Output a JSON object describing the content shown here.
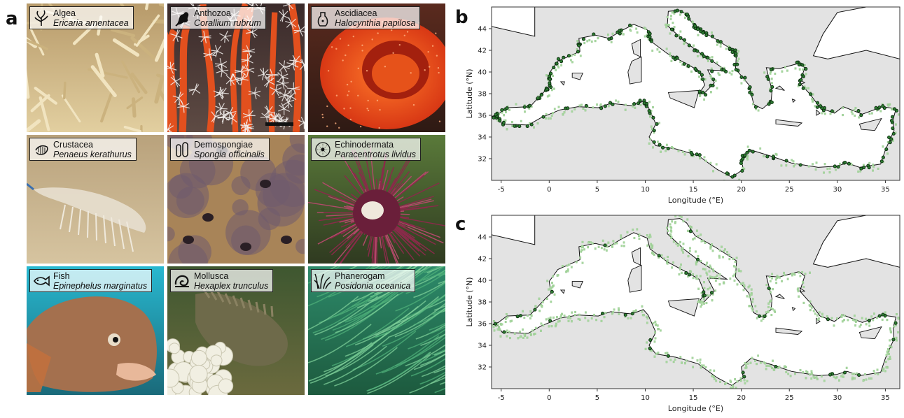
{
  "panels": {
    "a": "a",
    "b": "b",
    "c": "c"
  },
  "species": [
    {
      "group": "Algea",
      "species": "Ericaria amentacea",
      "icon": "alga-icon",
      "bg": "#d9c39a"
    },
    {
      "group": "Anthozoa",
      "species": "Corallium rubrum",
      "icon": "coral-icon",
      "bg": "#6b3b2a"
    },
    {
      "group": "Ascidiacea",
      "species": "Halocynthia papilosa",
      "icon": "ascidian-icon",
      "bg": "#b02810"
    },
    {
      "group": "Crustacea",
      "species": "Penaeus kerathurus",
      "icon": "shrimp-icon",
      "bg": "#c3ad85"
    },
    {
      "group": "Demospongiae",
      "species": "Spongia officinalis",
      "icon": "sponge-icon",
      "bg": "#8a6d52"
    },
    {
      "group": "Echinodermata",
      "species": "Paracentrotus lividus",
      "icon": "urchin-icon",
      "bg": "#4b1f2d"
    },
    {
      "group": "Fish",
      "species": "Epinephelus marginatus",
      "icon": "fish-icon",
      "bg": "#2aa7c2"
    },
    {
      "group": "Mollusca",
      "species": "Hexaplex trunculus",
      "icon": "snail-icon",
      "bg": "#5b6a3c"
    },
    {
      "group": "Phanerogam",
      "species": "Posidonia oceanica",
      "icon": "seagrass-icon",
      "bg": "#2b7a58"
    }
  ],
  "maps": {
    "xlabel": "Longitude (°E)",
    "ylabel": "Latitude (°N)",
    "xticks": [
      "-5",
      "0",
      "5",
      "10",
      "15",
      "20",
      "25",
      "30",
      "35"
    ],
    "yticks": [
      "32",
      "34",
      "36",
      "38",
      "40",
      "42",
      "44"
    ],
    "xlim": [
      -6,
      36.5
    ],
    "ylim": [
      30,
      46
    ],
    "colors": {
      "land": "#e3e3e3",
      "sea": "#ffffff",
      "cells": "#a8d8a0",
      "points": "#2e7d32",
      "coast": "#111111"
    }
  }
}
